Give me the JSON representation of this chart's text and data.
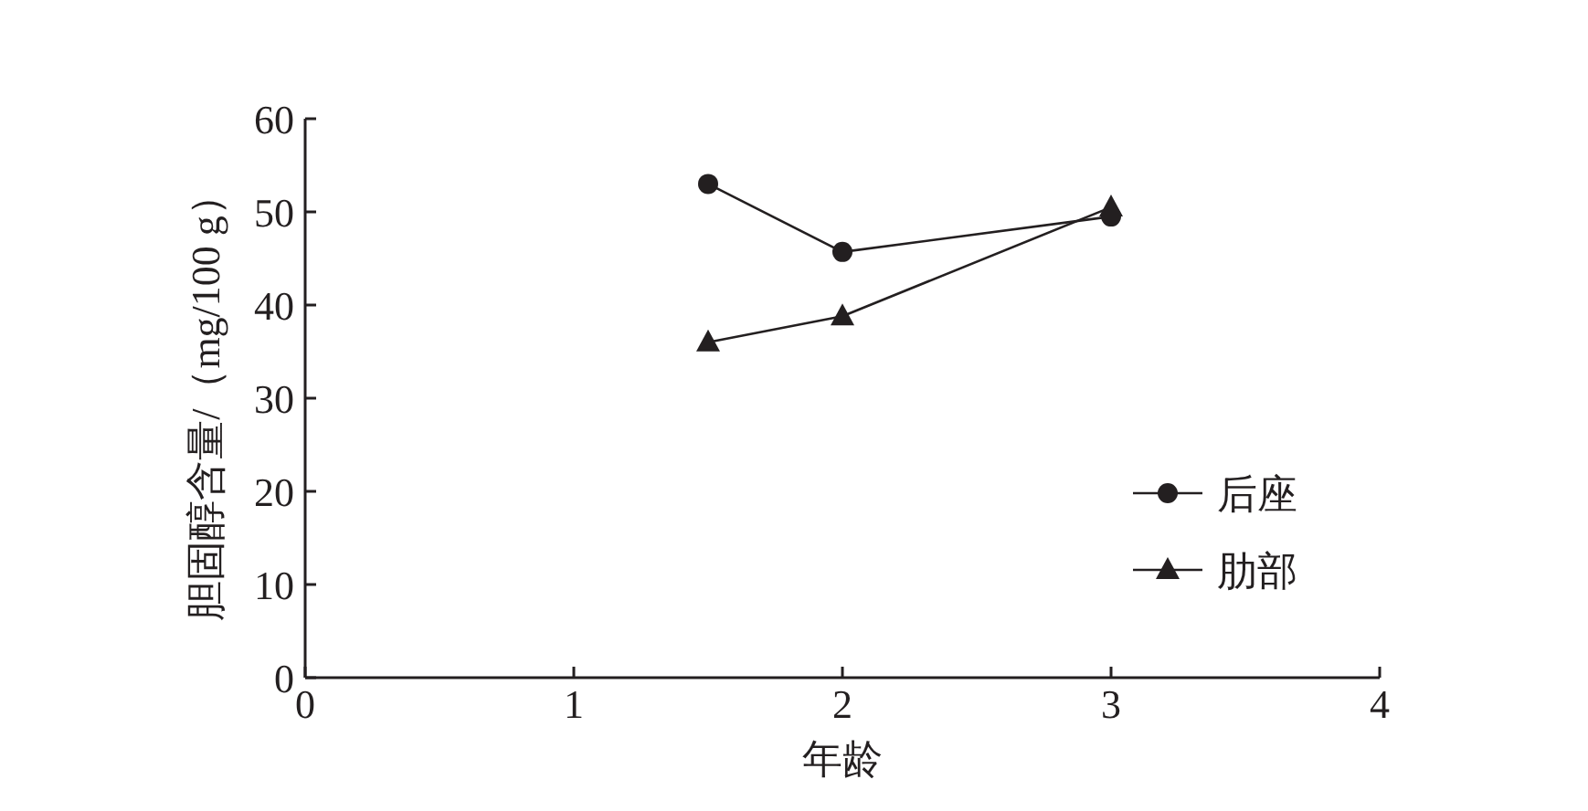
{
  "chart_data": {
    "type": "line",
    "xlabel": "年龄",
    "ylabel": "胆固醇含量/（mg/100 g）",
    "x": [
      1.5,
      2,
      3
    ],
    "series": [
      {
        "name": "后座",
        "color": "#231f20",
        "marker": "circle",
        "values": [
          53,
          45.7,
          49.5
        ]
      },
      {
        "name": "肋部",
        "color": "#231f20",
        "marker": "triangle",
        "values": [
          36,
          38.8,
          50.5
        ]
      }
    ],
    "xlim": [
      0,
      4
    ],
    "xticks": [
      0,
      1,
      2,
      3,
      4
    ],
    "ylim": [
      0,
      60
    ],
    "yticks": [
      0,
      10,
      20,
      30,
      40,
      50,
      60
    ],
    "legend": "right"
  }
}
